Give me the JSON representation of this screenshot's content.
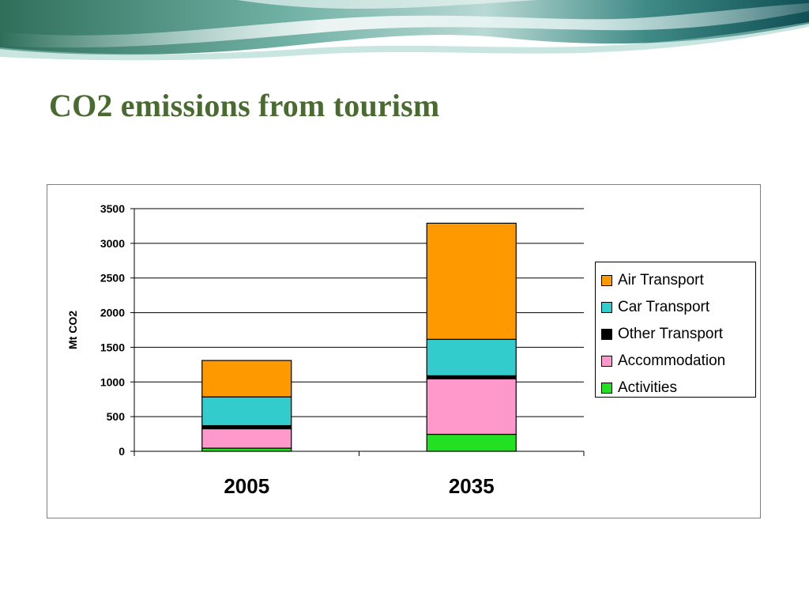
{
  "slide": {
    "title": "CO2 emissions from tourism"
  },
  "chart_data": {
    "type": "bar",
    "stacked": true,
    "categories": [
      "2005",
      "2035"
    ],
    "series": [
      {
        "name": "Activities",
        "color": "#22e022",
        "values": [
          45,
          245
        ]
      },
      {
        "name": "Accommodation",
        "color": "#ff99cc",
        "values": [
          280,
          800
        ]
      },
      {
        "name": "Other Transport",
        "color": "#000000",
        "values": [
          45,
          45
        ]
      },
      {
        "name": "Car Transport",
        "color": "#33cccc",
        "values": [
          415,
          525
        ]
      },
      {
        "name": "Air Transport",
        "color": "#ff9900",
        "values": [
          525,
          1675
        ]
      }
    ],
    "legend_order": [
      "Air Transport",
      "Car Transport",
      "Other Transport",
      "Accommodation",
      "Activities"
    ],
    "title": "",
    "xlabel": "",
    "ylabel": "Mt CO2",
    "ylim": [
      0,
      3500
    ],
    "yticks": [
      0,
      500,
      1000,
      1500,
      2000,
      2500,
      3000,
      3500
    ],
    "grid": true,
    "legend_position": "right"
  }
}
